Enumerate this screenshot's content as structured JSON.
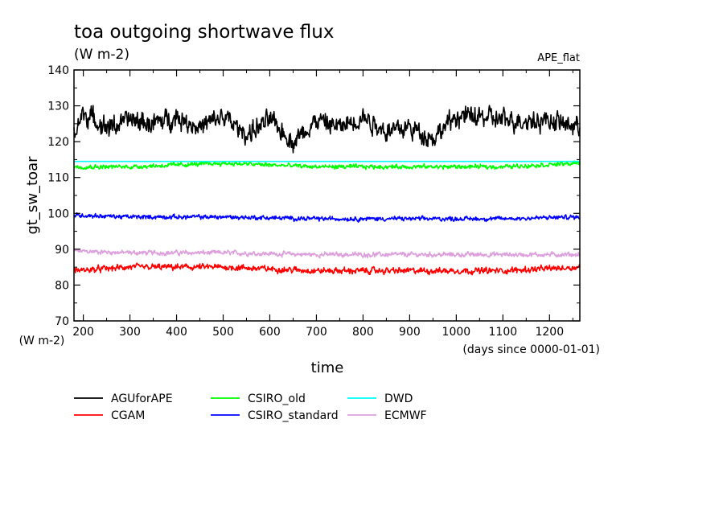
{
  "chart_data": {
    "type": "line",
    "title": "toa outgoing shortwave flux",
    "subtitle": "(W m-2)",
    "experiment": "APE_flat",
    "xlabel": "time",
    "x_unit_label": "(days since 0000-01-01)",
    "ylabel": "gt_sw_toar",
    "y_unit_label": "(W m-2)",
    "xlim": [
      180,
      1265
    ],
    "ylim": [
      70,
      140
    ],
    "x_ticks": [
      200,
      300,
      400,
      500,
      600,
      700,
      800,
      900,
      1000,
      1100,
      1200
    ],
    "y_ticks": [
      70,
      80,
      90,
      100,
      110,
      120,
      130,
      140
    ],
    "grid": false,
    "legend_position": "bottom",
    "series": [
      {
        "name": "AGUforAPE",
        "color": "#000000",
        "mean": 124.5,
        "amp": 4.2,
        "noise": 2.2,
        "x": [
          180,
          200,
          250,
          300,
          350,
          400,
          450,
          500,
          550,
          600,
          650,
          700,
          750,
          800,
          850,
          900,
          950,
          1000,
          1050,
          1100,
          1150,
          1200,
          1265
        ],
        "values": [
          122,
          128,
          124,
          126,
          125,
          127,
          124,
          127,
          122,
          126,
          120,
          126,
          124,
          127,
          123,
          124,
          121,
          127,
          127,
          126,
          126,
          126,
          124
        ]
      },
      {
        "name": "CGAM",
        "color": "#ff0000",
        "mean": 84.4,
        "amp": 1.1,
        "noise": 0.9,
        "x": [
          180,
          300,
          500,
          700,
          900,
          1100,
          1265
        ],
        "values": [
          84,
          85,
          85,
          84,
          84,
          84,
          85
        ]
      },
      {
        "name": "CSIRO_old",
        "color": "#00ff00",
        "mean": 113.2,
        "amp": 0.8,
        "noise": 0.6,
        "x": [
          180,
          300,
          500,
          700,
          900,
          1100,
          1265
        ],
        "values": [
          113,
          113,
          114,
          113,
          113,
          113,
          114
        ]
      },
      {
        "name": "CSIRO_standard",
        "color": "#0000ff",
        "mean": 98.6,
        "amp": 0.8,
        "noise": 0.6,
        "x": [
          180,
          300,
          500,
          700,
          900,
          1100,
          1265
        ],
        "values": [
          99.5,
          99,
          99,
          98.5,
          98.5,
          98.5,
          99
        ]
      },
      {
        "name": "DWD",
        "color": "#00ffff",
        "mean": 114.5,
        "amp": 0,
        "noise": 0,
        "x": [
          180,
          1265
        ],
        "values": [
          114.5,
          114.5
        ]
      },
      {
        "name": "ECMWF",
        "color": "#dda0dd",
        "mean": 88.6,
        "amp": 0.9,
        "noise": 0.6,
        "x": [
          180,
          300,
          500,
          700,
          900,
          1100,
          1265
        ],
        "values": [
          89.5,
          89,
          89,
          88.5,
          88.5,
          88.5,
          88.5
        ]
      }
    ]
  }
}
